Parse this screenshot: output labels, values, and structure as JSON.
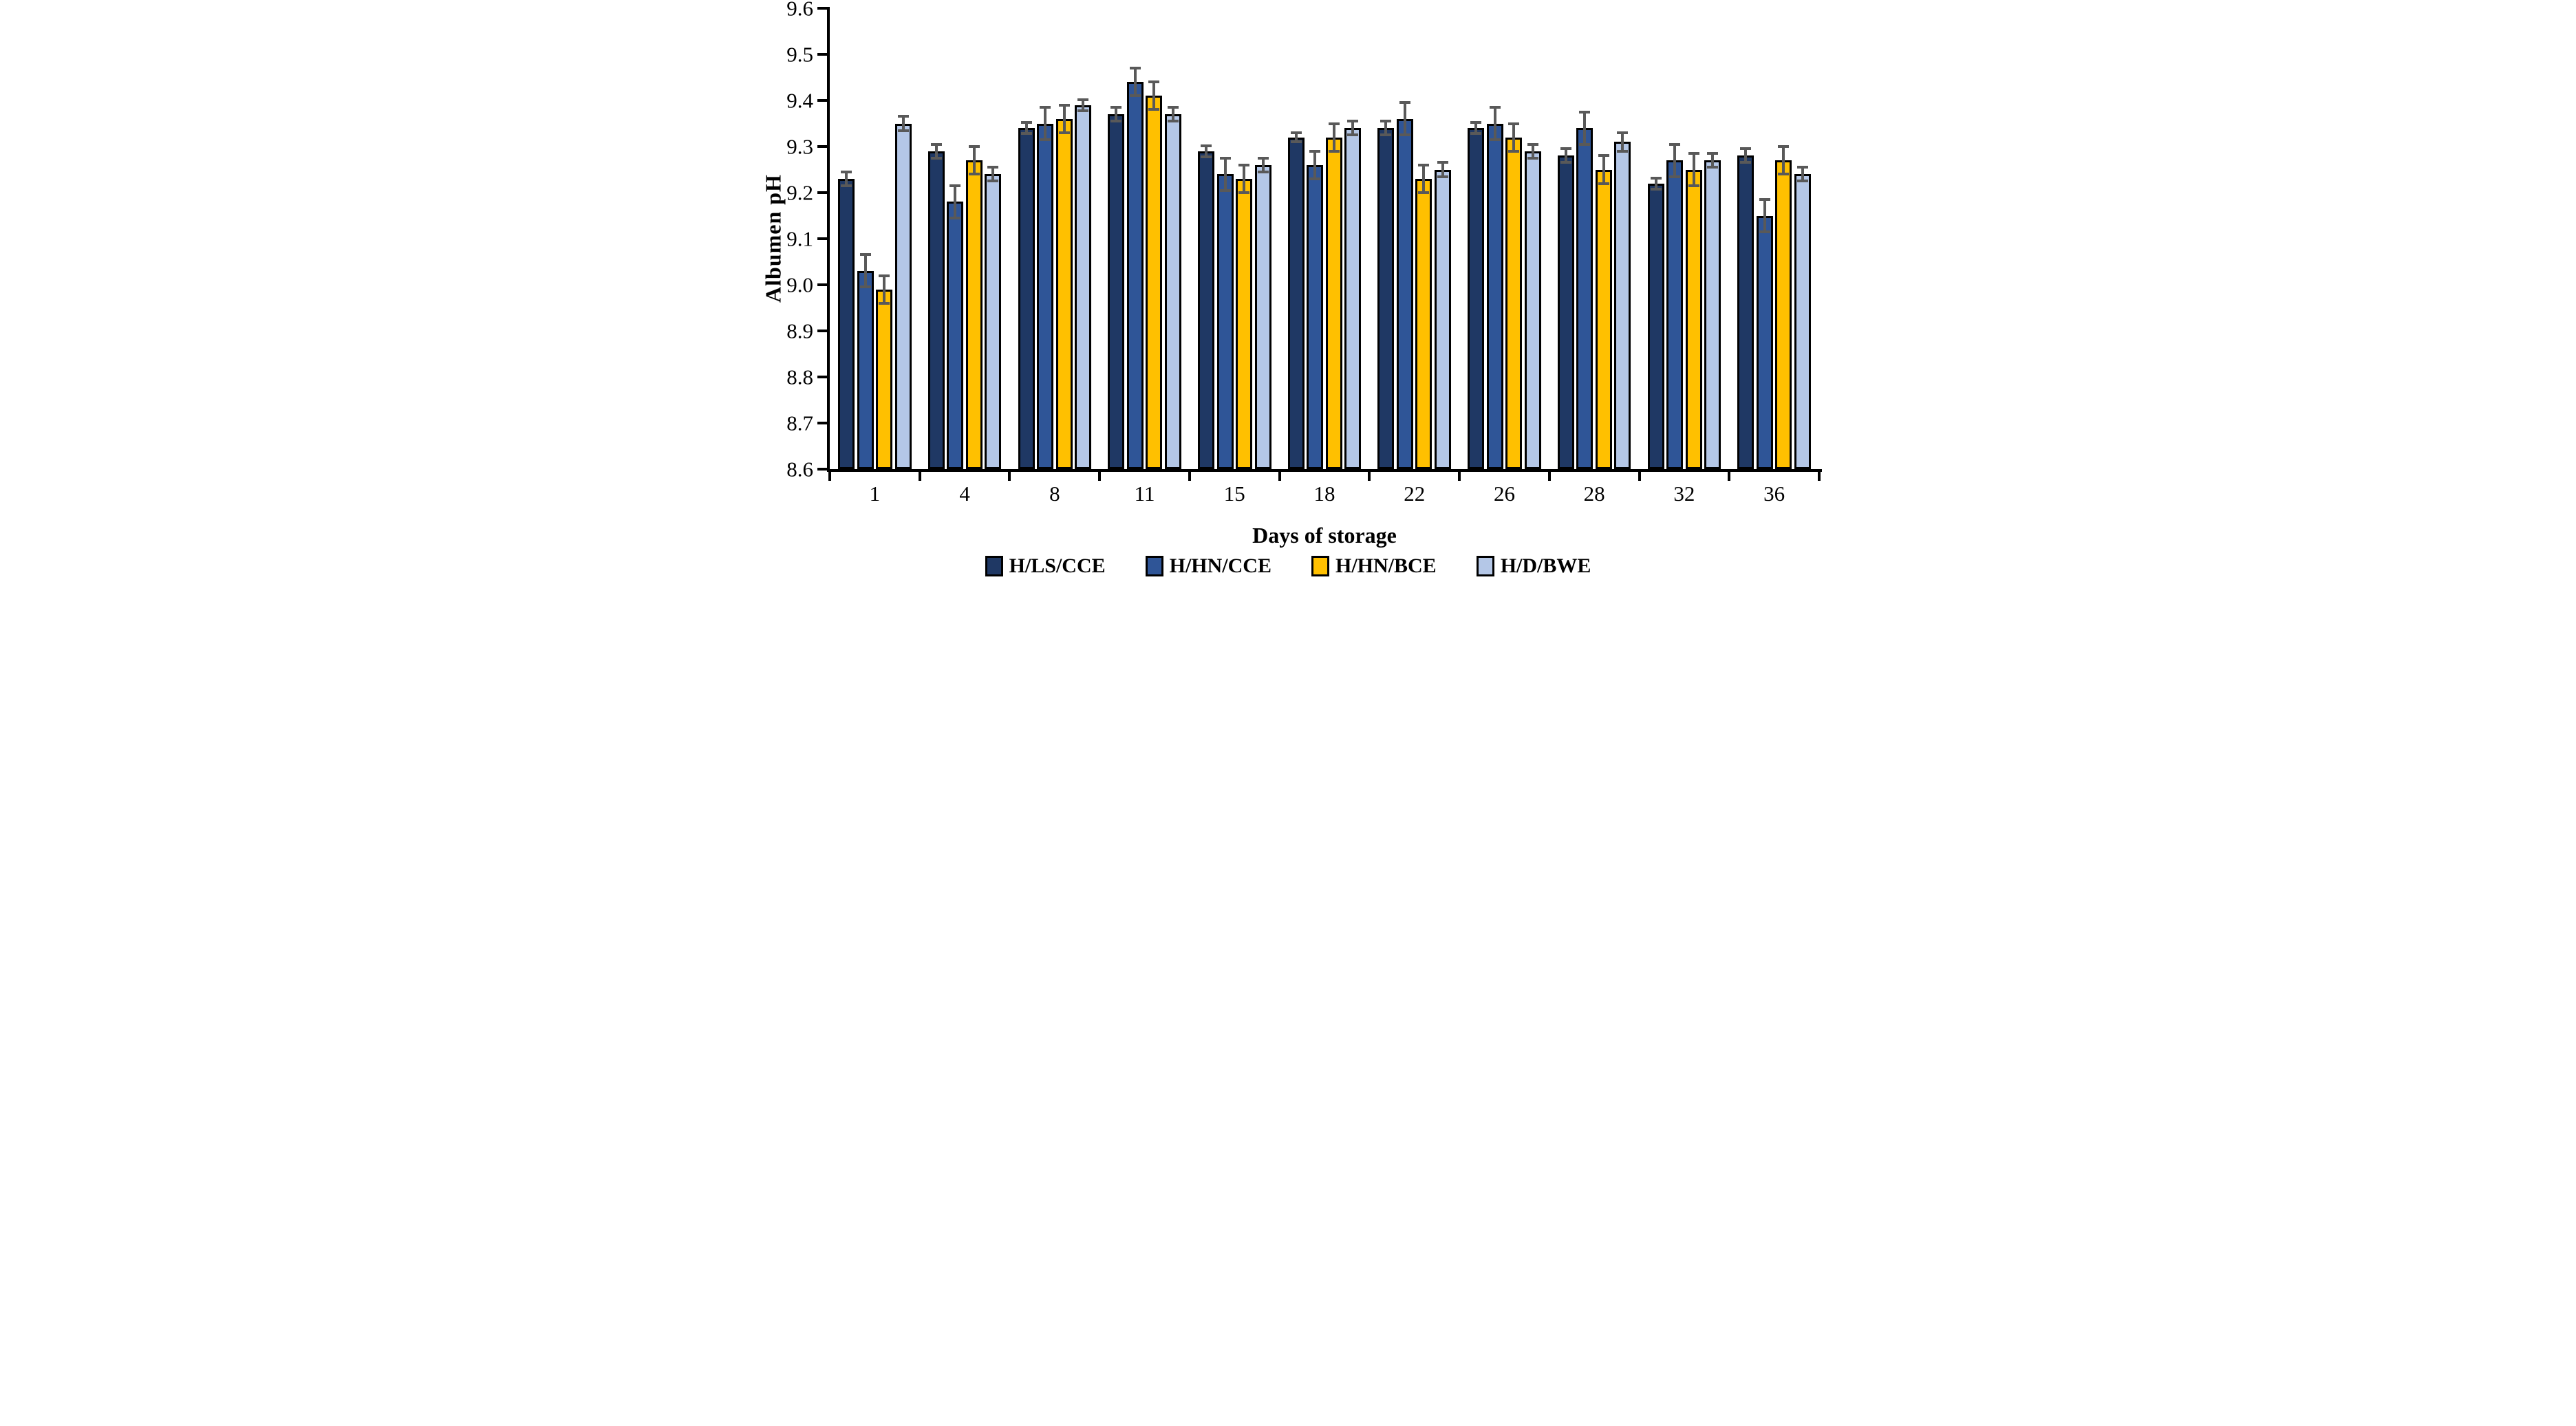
{
  "chart_data": {
    "type": "bar",
    "title": "",
    "xlabel": "Days of storage",
    "ylabel": "Albumen pH",
    "ylim": [
      8.6,
      9.6
    ],
    "ytick_step": 0.1,
    "ytick_labels": [
      "8.6",
      "8.7",
      "8.8",
      "8.9",
      "9.0",
      "9.1",
      "9.2",
      "9.3",
      "9.4",
      "9.5",
      "9.6"
    ],
    "categories": [
      "1",
      "4",
      "8",
      "11",
      "15",
      "18",
      "22",
      "26",
      "28",
      "32",
      "36"
    ],
    "series": [
      {
        "name": "H/LS/CCE",
        "color": "#1F3864",
        "values": [
          9.23,
          9.29,
          9.34,
          9.37,
          9.29,
          9.32,
          9.34,
          9.34,
          9.28,
          9.22,
          9.28
        ],
        "errors": [
          0.015,
          0.015,
          0.012,
          0.015,
          0.012,
          0.01,
          0.015,
          0.012,
          0.015,
          0.012,
          0.015
        ]
      },
      {
        "name": "H/HN/CCE",
        "color": "#2F5597",
        "values": [
          9.03,
          9.18,
          9.35,
          9.44,
          9.24,
          9.26,
          9.36,
          9.35,
          9.34,
          9.27,
          9.15
        ],
        "errors": [
          0.035,
          0.035,
          0.035,
          0.03,
          0.035,
          0.03,
          0.035,
          0.035,
          0.035,
          0.035,
          0.035
        ]
      },
      {
        "name": "H/HN/BCE",
        "color": "#FFC000",
        "values": [
          8.99,
          9.27,
          9.36,
          9.41,
          9.23,
          9.32,
          9.23,
          9.32,
          9.25,
          9.25,
          9.27
        ],
        "errors": [
          0.03,
          0.03,
          0.03,
          0.03,
          0.03,
          0.03,
          0.03,
          0.03,
          0.03,
          0.035,
          0.03
        ]
      },
      {
        "name": "H/D/BWE",
        "color": "#B4C7E7",
        "values": [
          9.35,
          9.24,
          9.39,
          9.37,
          9.26,
          9.34,
          9.25,
          9.29,
          9.31,
          9.27,
          9.24
        ],
        "errors": [
          0.015,
          0.015,
          0.012,
          0.015,
          0.015,
          0.015,
          0.015,
          0.015,
          0.02,
          0.015,
          0.015
        ]
      }
    ],
    "error_bar_color": "#595959",
    "axis_color": "#000000",
    "legend_position": "bottom",
    "grid": false
  }
}
